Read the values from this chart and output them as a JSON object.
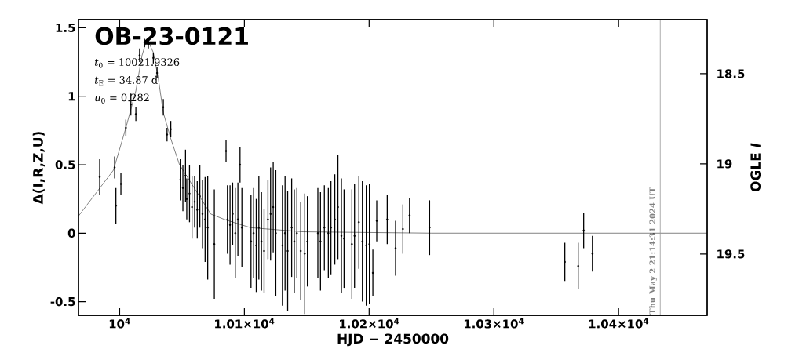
{
  "chart_data": {
    "type": "scatter",
    "title": "OB-23-0121",
    "annotations": [
      "*t*$_{0}$ = 10021.9326",
      "*t*$_{E}$ = 34.87 d",
      "*u*$_{0}$ = 0.282",
      {
        "text": "Thu May  2 21:14:31 2024 UT",
        "x": 10433.4,
        "y": -0.6
      }
    ],
    "xlabel": "HJD − 2450000",
    "ylabel": "Δ(I,R,Z,U)",
    "y2label": "OGLE *I*",
    "xlim": [
      9967,
      10471
    ],
    "ylim": [
      -0.6,
      1.56
    ],
    "y2lim": [
      19.84,
      18.2
    ],
    "xticks": [
      {
        "value": 10000,
        "label": "10$^{4}$"
      },
      {
        "value": 10100,
        "label": "1.01×10$^{4}$"
      },
      {
        "value": 10200,
        "label": "1.02×10$^{4}$"
      },
      {
        "value": 10300,
        "label": "1.03×10$^{4}$"
      },
      {
        "value": 10400,
        "label": "1.04×10$^{4}$"
      }
    ],
    "yticks": [
      -0.5,
      0,
      0.5,
      1,
      1.5
    ],
    "y2ticks": [
      18.5,
      19,
      19.5
    ],
    "ref_lines": [
      {
        "axis": "x",
        "value": 10433.4,
        "color": "#999999"
      }
    ],
    "series": [
      {
        "type": "line",
        "color": "#000000",
        "marker": "none",
        "x": [
          9967,
          9995,
          10005,
          10013,
          10018,
          10022,
          10027,
          10031,
          10035,
          10041,
          10048,
          10073,
          10084,
          10105,
          10147,
          10250,
          10471
        ],
        "values": [
          0.125,
          0.46,
          0.77,
          1.04,
          1.3,
          1.42,
          1.32,
          1.13,
          0.88,
          0.69,
          0.5,
          0.14,
          0.1,
          0.04,
          0.01,
          0,
          0
        ]
      },
      {
        "color": "#000000",
        "marker": "circle",
        "x": [
          9984,
          9996,
          9997,
          10001,
          10005,
          10009,
          10013,
          10016,
          10020,
          10023,
          10027,
          10030,
          10035,
          10038,
          10041,
          10048.6,
          10050.7,
          10052.8,
          10053.8,
          10056,
          10058,
          10060.1,
          10062.2,
          10064.3,
          10066.4,
          10068.5,
          10070.6,
          10075.9,
          10085.3,
          10086.4,
          10088.5,
          10090.6,
          10092.7,
          10094.8,
          10096.5,
          10098,
          10105.3,
          10107.4,
          10109.5,
          10111.6,
          10113.7,
          10115.8,
          10118.9,
          10121,
          10123.1,
          10125.2,
          10130.5,
          10132.6,
          10134.7,
          10137.9,
          10140,
          10142.1,
          10145.2,
          10148.4,
          10150.5,
          10158.9,
          10161,
          10164.1,
          10167.3,
          10169.4,
          10172.5,
          10175,
          10177.8,
          10179.9,
          10186.2,
          10188.3,
          10191.8,
          10194.6,
          10197.7,
          10200.2,
          10203,
          10206.1,
          10214.5,
          10221.2,
          10227.1,
          10232.4,
          10248.5,
          10356.9,
          10367.6,
          10372,
          10379
        ],
        "values": [
          0.41,
          0.48,
          0.2,
          0.36,
          0.77,
          0.94,
          0.87,
          1.3,
          1.39,
          1.38,
          1.28,
          1.17,
          0.92,
          0.72,
          0.76,
          0.39,
          0.33,
          0.42,
          0.25,
          0.29,
          0.19,
          0.23,
          0.17,
          0.27,
          0.14,
          0.1,
          0.04,
          -0.08,
          0.6,
          0.1,
          0.06,
          0.14,
          0,
          0.1,
          0.5,
          0.04,
          -0.06,
          0,
          -0.09,
          0.04,
          -0.06,
          -0.13,
          0.1,
          0.14,
          0.19,
          0,
          -0.09,
          0,
          -0.13,
          0.04,
          -0.06,
          0,
          -0.13,
          -0.15,
          -0.06,
          0,
          -0.06,
          0.04,
          0,
          0.04,
          0.1,
          0.19,
          -0.02,
          -0.04,
          -0.08,
          -0.02,
          0.08,
          -0.06,
          -0.09,
          -0.08,
          -0.29,
          0.09,
          0.1,
          -0.11,
          0.03,
          0.13,
          0.04,
          -0.21,
          -0.24,
          0.02,
          -0.15
        ],
        "errors": [
          0.13,
          0.08,
          0.13,
          0.08,
          0.06,
          0.08,
          0.05,
          0.05,
          0.03,
          0.03,
          0.04,
          0.04,
          0.06,
          0.05,
          0.06,
          0.15,
          0.17,
          0.19,
          0.15,
          0.21,
          0.23,
          0.19,
          0.21,
          0.23,
          0.25,
          0.31,
          0.38,
          0.4,
          0.08,
          0.25,
          0.29,
          0.23,
          0.33,
          0.27,
          0.13,
          0.29,
          0.34,
          0.33,
          0.34,
          0.38,
          0.36,
          0.31,
          0.29,
          0.34,
          0.33,
          0.46,
          0.44,
          0.42,
          0.44,
          0.36,
          0.38,
          0.33,
          0.36,
          0.44,
          0.33,
          0.33,
          0.36,
          0.31,
          0.33,
          0.34,
          0.33,
          0.38,
          0.42,
          0.36,
          0.4,
          0.38,
          0.34,
          0.44,
          0.44,
          0.44,
          0.17,
          0.15,
          0.18,
          0.2,
          0.18,
          0.13,
          0.2,
          0.14,
          0.17,
          0.13,
          0.13
        ]
      }
    ]
  }
}
